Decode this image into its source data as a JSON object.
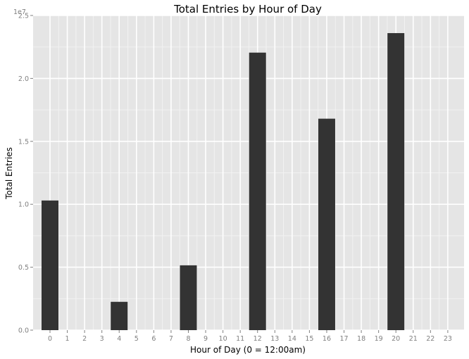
{
  "chart_data": {
    "type": "bar",
    "title": "Total Entries by Hour of Day",
    "xlabel": "Hour of Day (0 = 12:00am)",
    "ylabel": "Total Entries",
    "y_exponent_label": "1e7",
    "y_scale": 10000000,
    "ylim": [
      0,
      25000000
    ],
    "y_ticks": [
      {
        "value": 0,
        "label": "0.0"
      },
      {
        "value": 5000000,
        "label": "0.5"
      },
      {
        "value": 10000000,
        "label": "1.0"
      },
      {
        "value": 15000000,
        "label": "1.5"
      },
      {
        "value": 20000000,
        "label": "2.0"
      },
      {
        "value": 25000000,
        "label": "2.5"
      }
    ],
    "categories": [
      "0",
      "1",
      "2",
      "3",
      "4",
      "5",
      "6",
      "7",
      "8",
      "9",
      "10",
      "11",
      "12",
      "13",
      "14",
      "15",
      "16",
      "17",
      "18",
      "19",
      "20",
      "21",
      "22",
      "23"
    ],
    "values": [
      10300000,
      0,
      0,
      0,
      2250000,
      0,
      0,
      0,
      5150000,
      0,
      0,
      0,
      22050000,
      0,
      0,
      0,
      16800000,
      0,
      0,
      0,
      23600000,
      0,
      0,
      0
    ],
    "grid": true,
    "colors": {
      "panel": "#e5e5e5",
      "grid_major": "#ffffff",
      "grid_minor": "#f2f2f2",
      "bar": "#333333",
      "tick_text": "#7f7f7f"
    }
  }
}
